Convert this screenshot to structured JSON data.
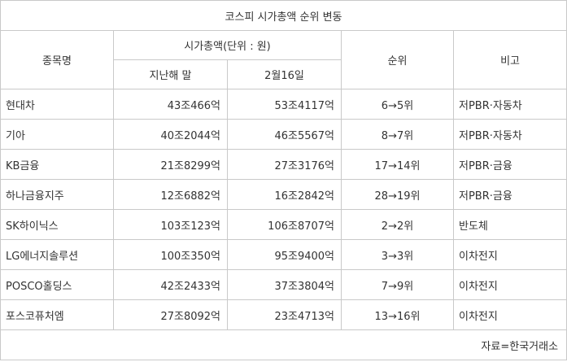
{
  "title": "코스피 시가총액 순위 변동",
  "headers": {
    "name": "종목명",
    "market_cap": "시가총액(단위 : 원)",
    "prev_year_end": "지난해 말",
    "feb16": "2월16일",
    "rank": "순위",
    "note": "비고"
  },
  "rows": [
    {
      "name": "현대차",
      "prev": "43조466억",
      "feb16": "53조4117억",
      "rank": "6→5위",
      "note": "저PBR·자동차"
    },
    {
      "name": "기아",
      "prev": "40조2044억",
      "feb16": "46조5567억",
      "rank": "8→7위",
      "note": "저PBR·자동차"
    },
    {
      "name": "KB금융",
      "prev": "21조8299억",
      "feb16": "27조3176억",
      "rank": "17→14위",
      "note": "저PBR·금융"
    },
    {
      "name": "하나금융지주",
      "prev": "12조6882억",
      "feb16": "16조2842억",
      "rank": "28→19위",
      "note": "저PBR·금융"
    },
    {
      "name": "SK하이닉스",
      "prev": "103조123억",
      "feb16": "106조8707억",
      "rank": "2→2위",
      "note": "반도체"
    },
    {
      "name": "LG에너지솔루션",
      "prev": "100조350억",
      "feb16": "95조9400억",
      "rank": "3→3위",
      "note": "이차전지"
    },
    {
      "name": "POSCO홀딩스",
      "prev": "42조2433억",
      "feb16": "37조3804억",
      "rank": "7→9위",
      "note": "이차전지"
    },
    {
      "name": "포스코퓨처엠",
      "prev": "27조8092억",
      "feb16": "23조4713억",
      "rank": "13→16위",
      "note": "이차전지"
    }
  ],
  "source": "자료=한국거래소"
}
